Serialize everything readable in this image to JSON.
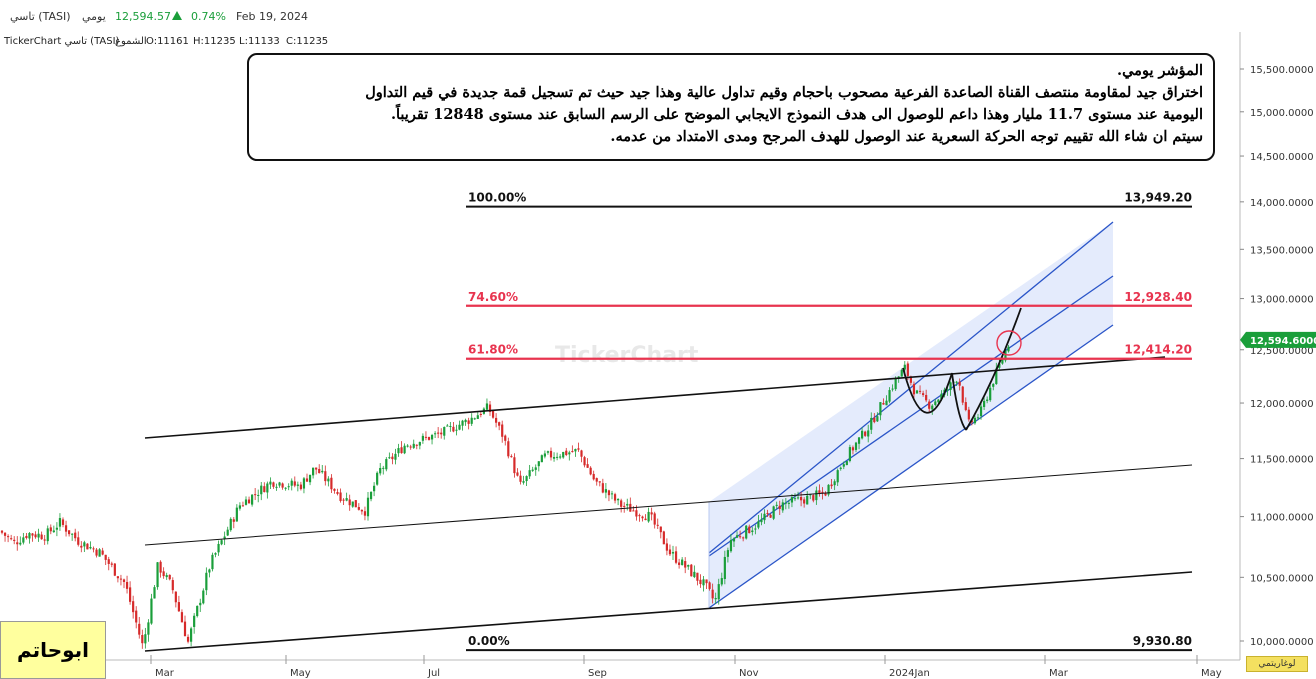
{
  "header": {
    "symbol": "تاسي (TASI)",
    "period": "يومي",
    "last_price": "12,594.57",
    "change_pct": "0.74%",
    "date": "Feb 19, 2024",
    "trend_icon": "up-triangle-icon",
    "trend_color": "#1a9e3a"
  },
  "infobar": {
    "title": "TickerChart تاسي (TASI)",
    "chart_kind": "الشموع",
    "open": "O:11161",
    "high": "H:11235",
    "low": "L:11133",
    "close": "C:11235"
  },
  "note": {
    "lines": [
      "المؤشر يومي.",
      "اختراق جيد لمقاومة منتصف القناة الصاعدة الفرعية مصحوب باحجام وقيم تداول عالية وهذا جيد حيث تم تسجيل قمة جديدة في قيم التداول",
      "اليومية عند مستوى 11.7 مليار وهذا داعم للوصول الى هدف النموذج الايجابي الموضح على الرسم السابق عند مستوى 12848 تقريباً.",
      "سيتم ان شاء الله تقييم توجه الحركة السعرية عند الوصول للهدف المرجح ومدى الامتداد من عدمه."
    ]
  },
  "author": "ابوحاتم",
  "log_button": "لوغاريتمي",
  "watermark": "TickerChart",
  "chart_data": {
    "type": "candlestick",
    "y_scale": "log",
    "y_axis_ticks": [
      "10,000.0000",
      "10,500.0000",
      "11,000.0000",
      "11,500.0000",
      "12,000.0000",
      "12,500.0000",
      "13,000.0000",
      "13,500.0000",
      "14,000.0000",
      "14,500.0000",
      "15,000.0000",
      "15,500.0000"
    ],
    "y_axis_tick_values": [
      10000,
      10500,
      11000,
      11500,
      12000,
      12500,
      13000,
      13500,
      14000,
      14500,
      15000,
      15500
    ],
    "ylim": [
      9860,
      15800
    ],
    "x_axis_ticks": [
      "Mar",
      "May",
      "Jul",
      "Sep",
      "Nov",
      "2024Jan",
      "Mar",
      "May"
    ],
    "current_price_label": "12,594.6000",
    "current_price": 12594.6,
    "fibonacci_levels": [
      {
        "pct": "100.00%",
        "value": "13,949.20",
        "v": 13949.2,
        "color": "#111111"
      },
      {
        "pct": "74.60%",
        "value": "12,928.40",
        "v": 12928.4,
        "color": "#e8344f"
      },
      {
        "pct": "61.80%",
        "value": "12,414.20",
        "v": 12414.2,
        "color": "#e8344f"
      },
      {
        "pct": "0.00%",
        "value": "9,930.80",
        "v": 9930.8,
        "color": "#111111"
      }
    ],
    "colors": {
      "up": "#1a9e3a",
      "down": "#d62a2a",
      "channel": "#2a55c8",
      "channel_fill": "#dde6fb",
      "fib_red": "#e8344f"
    }
  }
}
